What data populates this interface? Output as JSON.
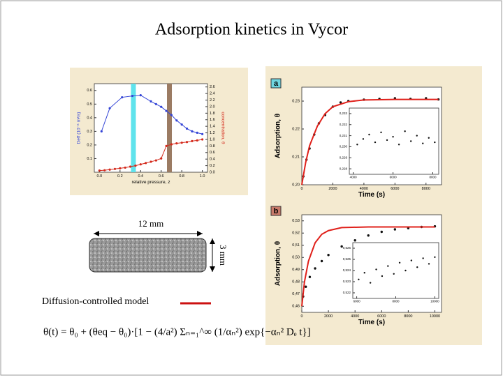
{
  "title": "Adsorption kinetics in Vycor",
  "left_figure": {
    "x_label": "relative pressure, z",
    "y_label": "Deff (10⁻⁸ m²/s)",
    "y2_label": "concentration, θ",
    "xlim": [
      -0.05,
      1.05
    ],
    "ylim": [
      0,
      0.65
    ],
    "y2lim": [
      0,
      2.7
    ],
    "xticks": [
      {
        "value": 0,
        "label": "0.0"
      },
      0.2,
      0.4,
      0.6,
      0.8,
      {
        "value": 1,
        "label": "1.0"
      }
    ],
    "yticks": [
      0.1,
      0.2,
      0.3,
      0.4,
      0.5,
      0.6
    ],
    "y2ticks": [
      {
        "value": 0,
        "label": "0.0"
      },
      0.2,
      0.4,
      0.6,
      0.8,
      {
        "value": 1,
        "label": "1.0"
      },
      1.2,
      1.4,
      1.6,
      1.8,
      {
        "value": 2,
        "label": "2.0"
      },
      2.2,
      2.4,
      2.6
    ],
    "bands": [
      {
        "value": 0.33,
        "color": "#5fe3ec"
      },
      {
        "value": 0.68,
        "color": "#9b7b63"
      }
    ],
    "series": [
      {
        "color": "#3344d6",
        "axis": "y",
        "x": [
          0.02,
          0.1,
          0.22,
          0.32,
          0.4,
          0.5,
          0.55,
          0.6,
          0.65,
          0.7,
          0.75,
          0.8,
          0.85,
          0.9,
          0.95,
          1.0
        ],
        "values": [
          0.3,
          0.47,
          0.55,
          0.56,
          0.565,
          0.52,
          0.5,
          0.48,
          0.45,
          0.42,
          0.38,
          0.35,
          0.32,
          0.3,
          0.29,
          0.28
        ]
      },
      {
        "color": "#d42a1c",
        "axis": "y2",
        "x": [
          0.0,
          0.05,
          0.1,
          0.15,
          0.2,
          0.25,
          0.3,
          0.35,
          0.4,
          0.45,
          0.5,
          0.55,
          0.6,
          0.65,
          0.7,
          0.75,
          0.8,
          0.85,
          0.9,
          0.95,
          1.0
        ],
        "values": [
          0.05,
          0.06,
          0.08,
          0.1,
          0.12,
          0.14,
          0.17,
          0.2,
          0.24,
          0.28,
          0.32,
          0.36,
          0.42,
          0.8,
          0.85,
          0.88,
          0.9,
          0.92,
          0.95,
          0.97,
          1.0
        ]
      }
    ]
  },
  "plot_a": {
    "panel_label": "a",
    "x_label": "Time (s)",
    "y_label": "Adsorption, θ",
    "xlim": [
      0,
      9000
    ],
    "ylim": [
      0.2,
      0.235
    ],
    "xticks": [
      0,
      2000,
      4000,
      6000,
      8000
    ],
    "yticks": [
      {
        "value": 0.2,
        "label": "0,20"
      },
      {
        "value": 0.21,
        "label": "0,21"
      },
      {
        "value": 0.22,
        "label": "0,22"
      },
      {
        "value": 0.23,
        "label": "0,23"
      }
    ],
    "series": [
      {
        "style": "markers",
        "color": "#111111",
        "x": [
          100,
          300,
          500,
          800,
          1100,
          1500,
          2000,
          2500,
          3000,
          4000,
          5000,
          6000,
          7000,
          8000,
          8800
        ],
        "values": [
          0.203,
          0.209,
          0.213,
          0.218,
          0.222,
          0.225,
          0.228,
          0.2295,
          0.23,
          0.2305,
          0.2308,
          0.231,
          0.2308,
          0.231,
          0.2306
        ]
      },
      {
        "style": "line",
        "color": "#e0201a",
        "x": [
          0,
          250,
          500,
          1000,
          1500,
          2000,
          3000,
          4000,
          6000,
          8800
        ],
        "values": [
          0.2,
          0.208,
          0.214,
          0.221,
          0.2255,
          0.228,
          0.2298,
          0.2304,
          0.2306,
          0.2306
        ]
      }
    ],
    "inset": {
      "xlim": [
        3800,
        8300
      ],
      "ylim": [
        0.2275,
        0.2335
      ],
      "xticks": [
        4000,
        6000,
        8000
      ],
      "yticks": [
        {
          "value": 0.228,
          "label": "0,228"
        },
        {
          "value": 0.229,
          "label": "0,229"
        },
        {
          "value": 0.23,
          "label": "0,230"
        },
        {
          "value": 0.231,
          "label": "0,231"
        },
        {
          "value": 0.232,
          "label": "0,232"
        },
        {
          "value": 0.233,
          "label": "0,233"
        }
      ],
      "series": [
        {
          "style": "markers",
          "color": "#111111",
          "x": [
            4200,
            4500,
            4800,
            5100,
            5400,
            5700,
            6000,
            6300,
            6600,
            6900,
            7200,
            7500,
            7800,
            8100
          ],
          "values": [
            0.2302,
            0.2307,
            0.2311,
            0.2304,
            0.2313,
            0.2306,
            0.2309,
            0.2302,
            0.2314,
            0.2305,
            0.231,
            0.2303,
            0.2308,
            0.2304
          ]
        }
      ]
    }
  },
  "plot_b": {
    "panel_label": "b",
    "x_label": "Time (s)",
    "y_label": "Adsorption, θ",
    "xlim": [
      0,
      10500
    ],
    "ylim": [
      0.455,
      0.535
    ],
    "xticks": [
      0,
      2000,
      4000,
      6000,
      8000,
      10000
    ],
    "yticks": [
      {
        "value": 0.46,
        "label": "0,46"
      },
      {
        "value": 0.47,
        "label": "0,47"
      },
      {
        "value": 0.48,
        "label": "0,48"
      },
      {
        "value": 0.49,
        "label": "0,49"
      },
      {
        "value": 0.5,
        "label": "0,50"
      },
      {
        "value": 0.51,
        "label": "0,51"
      },
      {
        "value": 0.52,
        "label": "0,52"
      },
      {
        "value": 0.53,
        "label": "0,53"
      }
    ],
    "series": [
      {
        "style": "markers",
        "color": "#111111",
        "x": [
          100,
          300,
          600,
          1000,
          1500,
          2000,
          3000,
          4000,
          5000,
          6000,
          7000,
          8000,
          9000,
          10000
        ],
        "values": [
          0.468,
          0.476,
          0.484,
          0.491,
          0.497,
          0.502,
          0.509,
          0.514,
          0.518,
          0.521,
          0.523,
          0.524,
          0.525,
          0.5255
        ]
      },
      {
        "style": "line",
        "color": "#e0201a",
        "x": [
          0,
          200,
          500,
          1000,
          1500,
          2000,
          3000,
          5000,
          10000
        ],
        "values": [
          0.46,
          0.48,
          0.497,
          0.512,
          0.519,
          0.522,
          0.5245,
          0.525,
          0.525
        ]
      }
    ],
    "inset": {
      "xlim": [
        5800,
        10200
      ],
      "ylim": [
        0.5215,
        0.5265
      ],
      "xticks": [
        6000,
        8000,
        10000
      ],
      "yticks": [
        {
          "value": 0.522,
          "label": "0,522"
        },
        {
          "value": 0.523,
          "label": "0,523"
        },
        {
          "value": 0.524,
          "label": "0,524"
        },
        {
          "value": 0.525,
          "label": "0,525"
        },
        {
          "value": 0.526,
          "label": "0,526"
        }
      ],
      "series": [
        {
          "style": "markers",
          "color": "#111111",
          "x": [
            6100,
            6400,
            6700,
            7000,
            7300,
            7600,
            7900,
            8200,
            8500,
            8800,
            9100,
            9400,
            9700,
            10000
          ],
          "values": [
            0.5232,
            0.5238,
            0.5229,
            0.5241,
            0.5235,
            0.5244,
            0.5237,
            0.5247,
            0.524,
            0.5249,
            0.5243,
            0.5251,
            0.5246,
            0.5252
          ]
        }
      ]
    }
  },
  "sample": {
    "length_label": "12 mm",
    "diameter_label": "3 mm"
  },
  "model": {
    "label": "Diffusion-controlled model",
    "line_color": "#cc1111",
    "equation": "θ(t) = θ₀ + (θeq − θ₀)·[1 − (4/a²) Σₙ₌₁^∞ (1/αₙ²) exp{−αₙ² Dₑ t}]"
  }
}
